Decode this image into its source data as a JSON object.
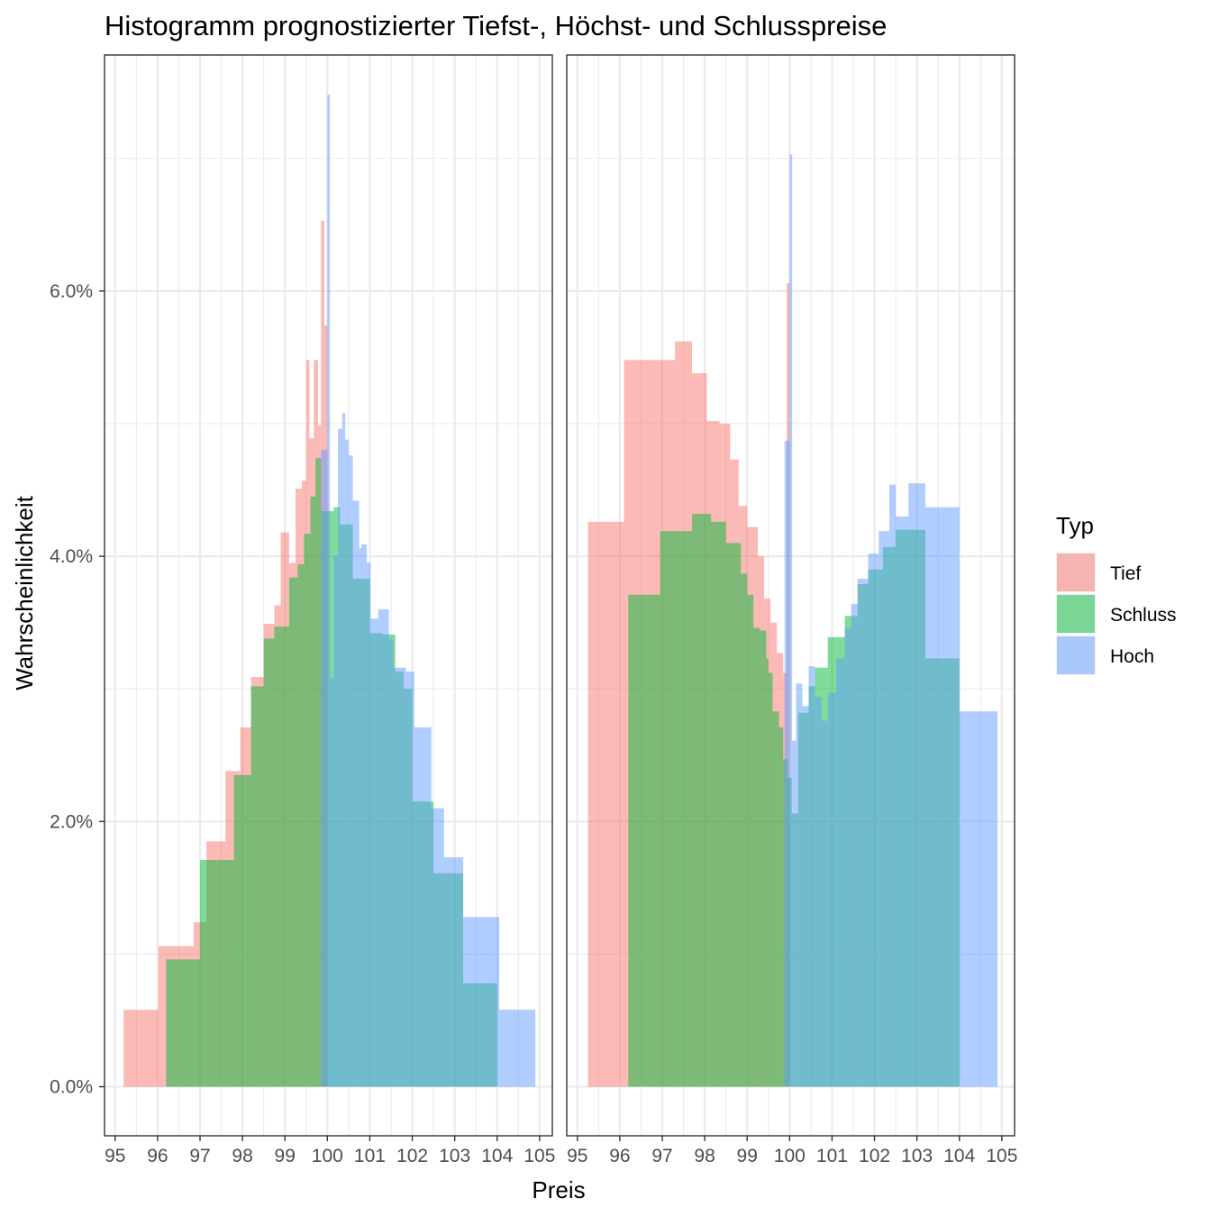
{
  "chart_data": {
    "type": "bar",
    "title": "Histogramm prognostizierter Tiefst-, Höchst- und Schlusspreise",
    "xlabel": "Preis",
    "ylabel": "Wahrscheinlichkeit",
    "xlim": [
      94.75,
      105.3
    ],
    "ylim": [
      -0.0037,
      0.0778
    ],
    "x_ticks": [
      95,
      96,
      97,
      98,
      99,
      100,
      101,
      102,
      103,
      104,
      105
    ],
    "y_ticks": [
      0,
      0.02,
      0.04,
      0.06
    ],
    "y_tick_labels": [
      "0.0%",
      "2.0%",
      "4.0%",
      "6.0%"
    ],
    "grid": true,
    "legend": {
      "title": "Typ",
      "position": "right",
      "entries": [
        {
          "name": "Tief",
          "color": "#F8766D"
        },
        {
          "name": "Schluss",
          "color": "#00BA38"
        },
        {
          "name": "Hoch",
          "color": "#619CFF"
        }
      ]
    },
    "fill_alpha": 0.5,
    "panels": [
      {
        "series": [
          {
            "name": "Tief",
            "color": "#F8766D",
            "bins": [
              [
                95.2,
                96.02,
                0.0058
              ],
              [
                96.02,
                96.85,
                0.0106
              ],
              [
                96.85,
                97.15,
                0.0124
              ],
              [
                97.15,
                97.6,
                0.0185
              ],
              [
                97.6,
                97.95,
                0.0238
              ],
              [
                97.95,
                98.2,
                0.0271
              ],
              [
                98.2,
                98.5,
                0.0309
              ],
              [
                98.5,
                98.75,
                0.0349
              ],
              [
                98.75,
                98.9,
                0.0363
              ],
              [
                98.9,
                99.1,
                0.0418
              ],
              [
                99.1,
                99.25,
                0.0395
              ],
              [
                99.25,
                99.4,
                0.0451
              ],
              [
                99.4,
                99.5,
                0.0457
              ],
              [
                99.5,
                99.58,
                0.0548
              ],
              [
                99.58,
                99.68,
                0.0489
              ],
              [
                99.68,
                99.78,
                0.0548
              ],
              [
                99.78,
                99.85,
                0.0499
              ],
              [
                99.85,
                99.93,
                0.0653
              ],
              [
                99.93,
                100.0,
                0.0574
              ]
            ]
          },
          {
            "name": "Schluss",
            "color": "#00BA38",
            "bins": [
              [
                96.2,
                97.0,
                0.0096
              ],
              [
                97.0,
                97.4,
                0.0171
              ],
              [
                97.4,
                97.8,
                0.0171
              ],
              [
                97.8,
                98.2,
                0.0235
              ],
              [
                98.2,
                98.5,
                0.0302
              ],
              [
                98.5,
                98.75,
                0.0338
              ],
              [
                98.75,
                99.1,
                0.0347
              ],
              [
                99.1,
                99.3,
                0.0384
              ],
              [
                99.3,
                99.45,
                0.0394
              ],
              [
                99.45,
                99.6,
                0.0417
              ],
              [
                99.6,
                99.72,
                0.0445
              ],
              [
                99.72,
                99.85,
                0.0474
              ],
              [
                99.85,
                100.15,
                0.0434
              ],
              [
                100.15,
                100.3,
                0.0437
              ],
              [
                100.3,
                100.6,
                0.0424
              ],
              [
                100.6,
                101.0,
                0.0383
              ],
              [
                101.0,
                101.3,
                0.0342
              ],
              [
                101.3,
                101.6,
                0.0341
              ],
              [
                101.6,
                101.8,
                0.0313
              ],
              [
                101.8,
                102.0,
                0.03
              ],
              [
                102.0,
                102.5,
                0.0215
              ],
              [
                102.5,
                103.2,
                0.0161
              ],
              [
                103.2,
                104.0,
                0.0078
              ]
            ]
          },
          {
            "name": "Hoch",
            "color": "#619CFF",
            "bins": [
              [
                99.85,
                100.0,
                0.048
              ],
              [
                100.0,
                100.06,
                0.0748
              ],
              [
                100.06,
                100.15,
                0.0308
              ],
              [
                100.15,
                100.25,
                0.04
              ],
              [
                100.25,
                100.35,
                0.0496
              ],
              [
                100.35,
                100.42,
                0.0508
              ],
              [
                100.42,
                100.5,
                0.0488
              ],
              [
                100.5,
                100.6,
                0.0476
              ],
              [
                100.6,
                100.75,
                0.0442
              ],
              [
                100.75,
                100.8,
                0.0406
              ],
              [
                100.8,
                100.93,
                0.0409
              ],
              [
                100.93,
                101.02,
                0.0395
              ],
              [
                101.02,
                101.2,
                0.0353
              ],
              [
                101.2,
                101.45,
                0.036
              ],
              [
                101.45,
                101.55,
                0.0337
              ],
              [
                101.55,
                101.85,
                0.0316
              ],
              [
                101.85,
                102.05,
                0.0313
              ],
              [
                102.05,
                102.45,
                0.0271
              ],
              [
                102.45,
                102.75,
                0.021
              ],
              [
                102.75,
                103.2,
                0.0173
              ],
              [
                103.2,
                104.05,
                0.0128
              ],
              [
                104.05,
                104.9,
                0.0058
              ]
            ]
          }
        ]
      },
      {
        "series": [
          {
            "name": "Tief",
            "color": "#F8766D",
            "bins": [
              [
                95.25,
                96.1,
                0.0426
              ],
              [
                96.1,
                96.85,
                0.0548
              ],
              [
                96.85,
                97.3,
                0.0548
              ],
              [
                97.3,
                97.7,
                0.0562
              ],
              [
                97.7,
                98.05,
                0.0538
              ],
              [
                98.05,
                98.35,
                0.0502
              ],
              [
                98.35,
                98.6,
                0.05
              ],
              [
                98.6,
                98.8,
                0.0473
              ],
              [
                98.8,
                99.0,
                0.0438
              ],
              [
                99.0,
                99.25,
                0.0422
              ],
              [
                99.25,
                99.4,
                0.04
              ],
              [
                99.4,
                99.55,
                0.0368
              ],
              [
                99.55,
                99.7,
                0.035
              ],
              [
                99.7,
                99.85,
                0.0327
              ],
              [
                99.85,
                99.93,
                0.0312
              ],
              [
                99.93,
                100.0,
                0.0606
              ]
            ]
          },
          {
            "name": "Schluss",
            "color": "#00BA38",
            "bins": [
              [
                96.2,
                96.95,
                0.0371
              ],
              [
                96.95,
                97.7,
                0.0419
              ],
              [
                97.7,
                98.15,
                0.0432
              ],
              [
                98.15,
                98.5,
                0.0426
              ],
              [
                98.5,
                98.85,
                0.041
              ],
              [
                98.85,
                99.0,
                0.0387
              ],
              [
                99.0,
                99.15,
                0.0371
              ],
              [
                99.15,
                99.3,
                0.0346
              ],
              [
                99.3,
                99.45,
                0.0344
              ],
              [
                99.45,
                99.5,
                0.0323
              ],
              [
                99.5,
                99.6,
                0.0312
              ],
              [
                99.6,
                99.75,
                0.0283
              ],
              [
                99.75,
                99.85,
                0.0271
              ],
              [
                99.85,
                99.95,
                0.0247
              ],
              [
                99.95,
                100.05,
                0.0233
              ],
              [
                100.05,
                100.2,
                0.0206
              ],
              [
                100.2,
                100.45,
                0.0282
              ],
              [
                100.45,
                100.6,
                0.0302
              ],
              [
                100.6,
                100.9,
                0.0316
              ],
              [
                100.9,
                101.3,
                0.0339
              ],
              [
                101.3,
                101.6,
                0.0355
              ],
              [
                101.6,
                101.85,
                0.0379
              ],
              [
                101.85,
                102.2,
                0.039
              ],
              [
                102.2,
                102.5,
                0.0407
              ],
              [
                102.5,
                103.2,
                0.042
              ],
              [
                103.2,
                104.0,
                0.0323
              ]
            ]
          },
          {
            "name": "Hoch",
            "color": "#619CFF",
            "bins": [
              [
                99.88,
                100.0,
                0.0487
              ],
              [
                100.0,
                100.06,
                0.0703
              ],
              [
                100.06,
                100.15,
                0.0261
              ],
              [
                100.15,
                100.3,
                0.0304
              ],
              [
                100.3,
                100.45,
                0.0287
              ],
              [
                100.45,
                100.6,
                0.0317
              ],
              [
                100.6,
                100.75,
                0.0294
              ],
              [
                100.75,
                100.9,
                0.0276
              ],
              [
                100.9,
                101.1,
                0.0297
              ],
              [
                101.1,
                101.3,
                0.0323
              ],
              [
                101.3,
                101.45,
                0.0346
              ],
              [
                101.45,
                101.6,
                0.0364
              ],
              [
                101.6,
                101.85,
                0.0383
              ],
              [
                101.85,
                102.1,
                0.0402
              ],
              [
                102.1,
                102.35,
                0.0419
              ],
              [
                102.35,
                102.5,
                0.0454
              ],
              [
                102.5,
                102.8,
                0.043
              ],
              [
                102.8,
                103.2,
                0.0455
              ],
              [
                103.2,
                104.0,
                0.0437
              ],
              [
                104.0,
                104.9,
                0.0283
              ]
            ]
          }
        ]
      }
    ]
  }
}
